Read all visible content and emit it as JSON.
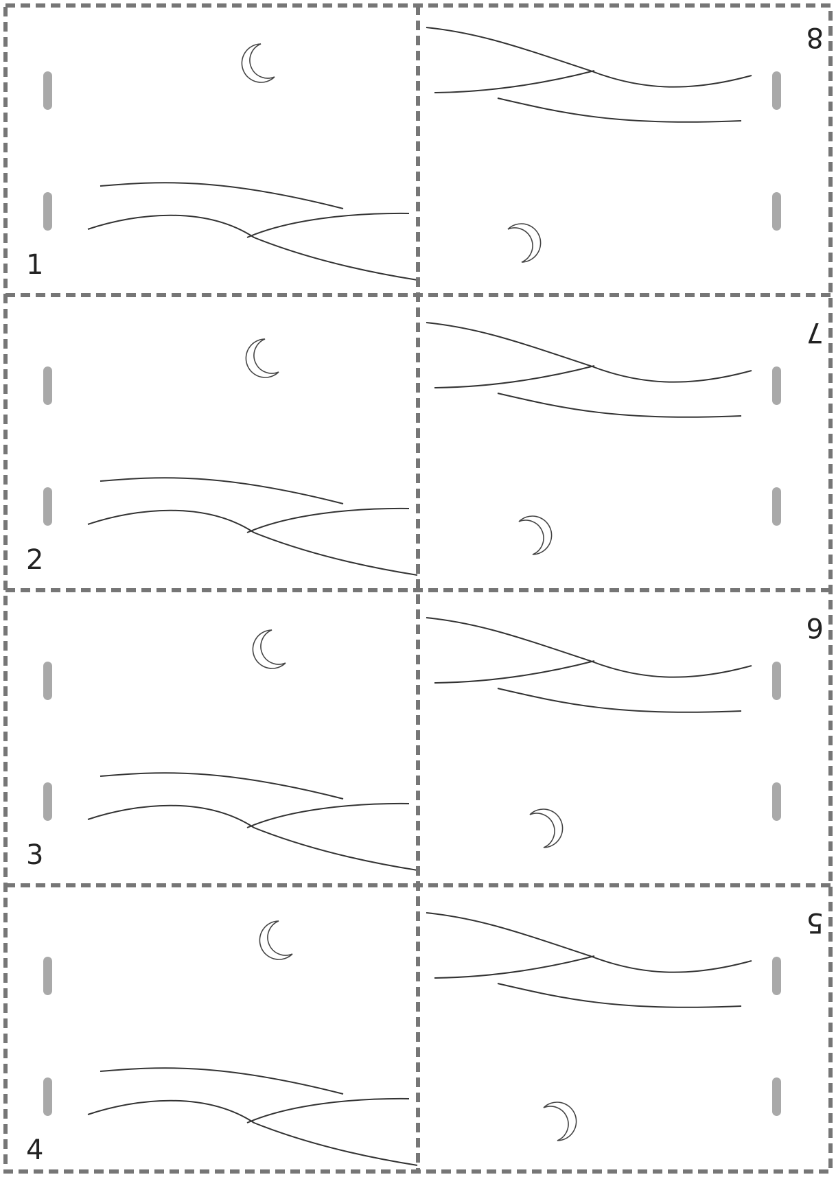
{
  "page_numbers": {
    "p1": "1",
    "p2": "2",
    "p3": "3",
    "p4": "4",
    "p5": "5",
    "p6": "6",
    "p7": "7",
    "p8": "8"
  },
  "colors": {
    "cut_line": "#767676",
    "staple_mark": "#a9a9a9",
    "drawing_line": "#333333",
    "background": "#ffffff"
  },
  "icons": {
    "moon": "crescent-moon-icon",
    "staple": "staple-slot-mark"
  }
}
